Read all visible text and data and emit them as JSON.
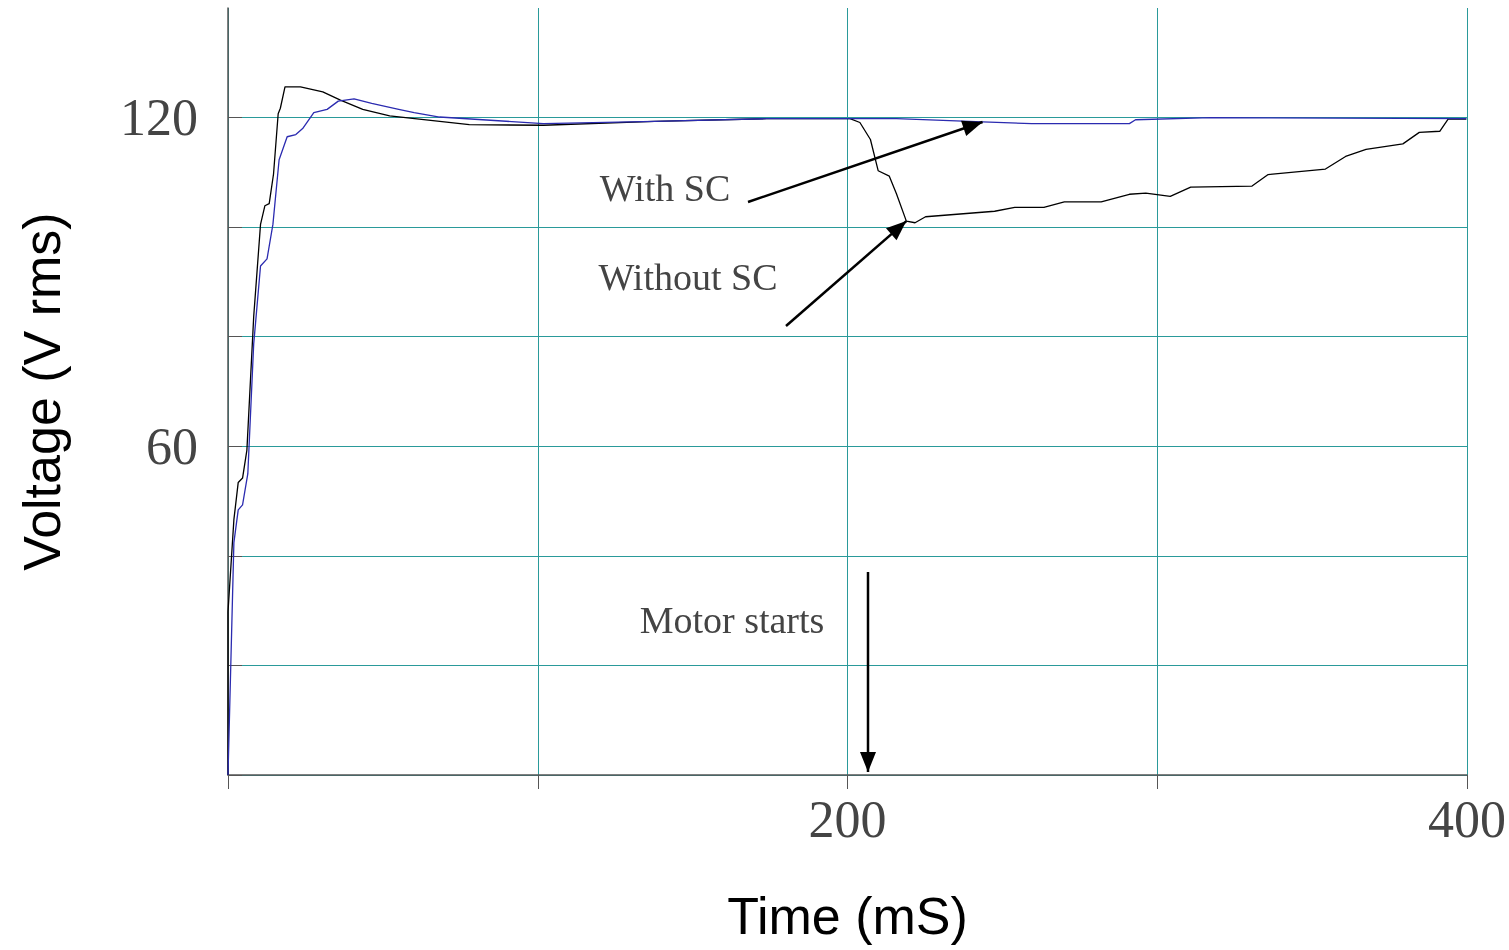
{
  "chart_data": {
    "type": "line",
    "xlabel": "Time (mS)",
    "ylabel": "Voltage (V rms)",
    "xlim": [
      0,
      400
    ],
    "ylim": [
      0,
      140
    ],
    "xticks": [
      {
        "value": 0,
        "label": null
      },
      {
        "value": 100,
        "label": null
      },
      200,
      {
        "value": 300,
        "label": null
      },
      400
    ],
    "yticks": [
      {
        "value": 0,
        "label": null
      },
      {
        "value": 20,
        "label": null
      },
      {
        "value": 40,
        "label": null
      },
      60,
      {
        "value": 80,
        "label": null
      },
      {
        "value": 100,
        "label": null
      },
      120
    ],
    "grid": true,
    "marker": "none",
    "line_style": "solid",
    "series": [
      {
        "color": "#000000",
        "x": [
          0,
          0,
          1.9,
          3.3,
          4.7,
          6.1,
          8.3,
          10.5,
          11.9,
          13.3,
          14.7,
          16.2,
          16.9,
          18.4,
          23.4,
          30.6,
          36.3,
          43.5,
          52.2,
          77.9,
          101.8,
          137.8,
          173.9,
          200.8,
          204,
          207.4,
          209.9,
          213.5,
          215.8,
          219,
          221.8,
          225.2,
          247.5,
          254,
          263.4,
          270,
          281.9,
          291,
          296.3,
          304.2,
          310.8,
          330.6,
          335.8,
          354.3,
          360.8,
          367.4,
          379.3,
          384.6,
          391.2,
          393.9,
          399.8
        ],
        "values": [
          0,
          29.8,
          46.6,
          53.4,
          54.2,
          59.3,
          83.7,
          100.5,
          103.9,
          104.3,
          109.7,
          120.7,
          121.7,
          125.6,
          125.6,
          124.7,
          123.2,
          121.5,
          120.3,
          118.7,
          118.6,
          119.3,
          119.8,
          119.8,
          119.1,
          116,
          110.3,
          109.3,
          106.1,
          101.1,
          100.8,
          101.9,
          102.9,
          103.6,
          103.6,
          104.6,
          104.6,
          106,
          106.2,
          105.6,
          107.3,
          107.5,
          109.6,
          110.6,
          112.9,
          114.2,
          115.2,
          117.3,
          117.5,
          119.7,
          119.7
        ]
      },
      {
        "color": "#2b2bb0",
        "x": [
          0,
          1.9,
          3.3,
          4.7,
          6.4,
          8.3,
          10.5,
          12.6,
          14.5,
          16.5,
          19.1,
          21.9,
          24.1,
          27.7,
          32,
          35.6,
          40.7,
          46.4,
          55.1,
          60.1,
          68.3,
          101.8,
          137.8,
          173.9,
          200.8,
          215.8,
          243.6,
          259.4,
          291,
          293,
          317.3,
          399.8
        ],
        "values": [
          0,
          42.4,
          48.4,
          49.3,
          55,
          78.7,
          92.9,
          94.2,
          100.5,
          112.3,
          116.5,
          116.9,
          118,
          120.9,
          121.5,
          123,
          123.4,
          122.6,
          121.5,
          120.9,
          120.1,
          118.9,
          119.3,
          119.8,
          119.8,
          119.8,
          119.2,
          118.9,
          118.9,
          119.6,
          120,
          119.8
        ]
      }
    ],
    "annotations": [
      {
        "text": "With SC",
        "x": 243.6,
        "y": 119.2
      },
      {
        "text": "Without SC",
        "x": 219,
        "y": 101.1
      },
      "Motor starts"
    ]
  }
}
